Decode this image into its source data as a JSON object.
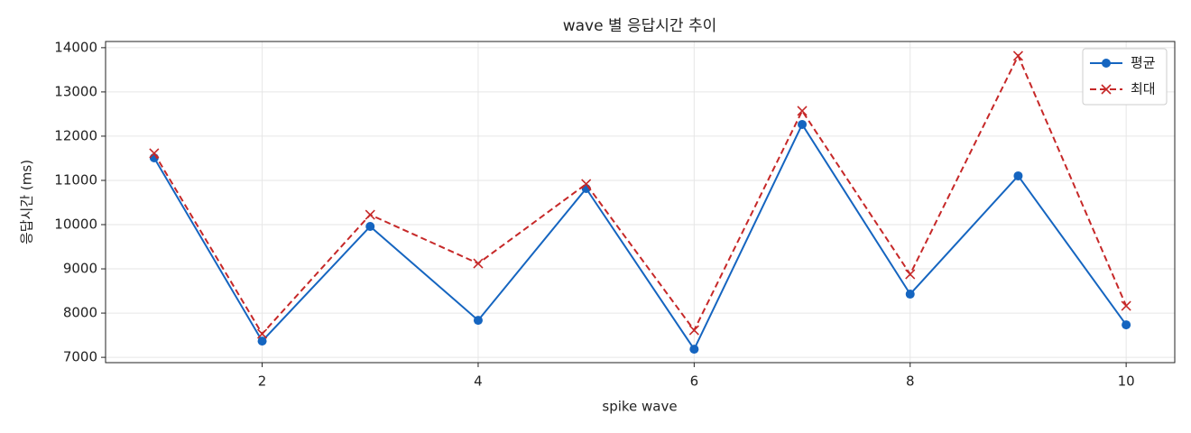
{
  "chart_data": {
    "type": "line",
    "title": "wave 별 응답시간 추이",
    "xlabel": "spike wave",
    "ylabel": "응답시간 (ms)",
    "x": [
      1,
      2,
      3,
      4,
      5,
      6,
      7,
      8,
      9,
      10
    ],
    "series": [
      {
        "name": "평균",
        "color": "#1565c0",
        "marker": "o",
        "linestyle": "solid",
        "values": [
          11510,
          7367,
          9959,
          7837,
          10816,
          7184,
          12265,
          8429,
          11102,
          7735
        ]
      },
      {
        "name": "최대",
        "color": "#c62828",
        "marker": "x",
        "linestyle": "dashed",
        "values": [
          11612,
          7531,
          10224,
          9122,
          10918,
          7612,
          12571,
          8878,
          13816,
          8163
        ]
      }
    ],
    "xlim": [
      0.55,
      10.45
    ],
    "xticks": [
      2,
      4,
      6,
      8,
      10
    ],
    "ylim": [
      6880,
      14140
    ],
    "yticks": [
      7000,
      8000,
      9000,
      10000,
      11000,
      12000,
      13000,
      14000
    ],
    "grid": true,
    "legend": "upper right"
  }
}
